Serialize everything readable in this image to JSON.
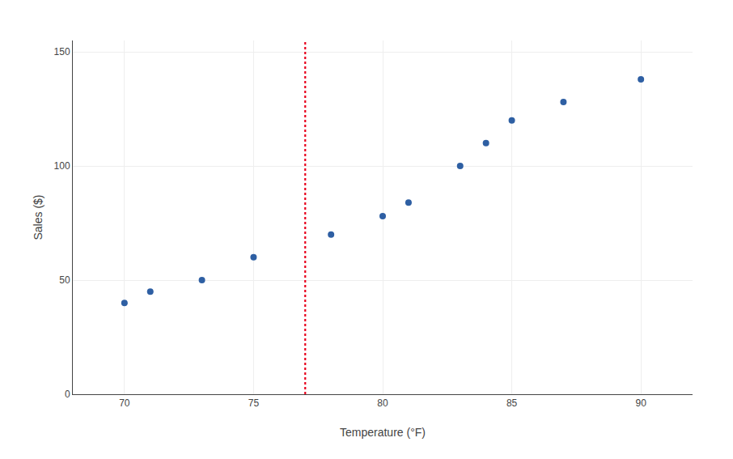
{
  "chart_data": {
    "type": "scatter",
    "x": [
      70,
      71,
      73,
      75,
      78,
      80,
      81,
      83,
      84,
      85,
      87,
      90
    ],
    "values": [
      40,
      45,
      50,
      60,
      70,
      78,
      84,
      100,
      110,
      120,
      128,
      138
    ],
    "color": "#2E5FA3",
    "xlabel": "Temperature (°F)",
    "ylabel": "Sales ($)",
    "xlim": [
      68,
      92
    ],
    "ylim": [
      0,
      155
    ],
    "xticks": [
      70,
      75,
      80,
      85,
      90
    ],
    "yticks": [
      0,
      50,
      100,
      150
    ],
    "grid": true,
    "reference_lines": [
      {
        "x": 77,
        "color": "#e8001d",
        "line_style": "dotted"
      }
    ]
  }
}
